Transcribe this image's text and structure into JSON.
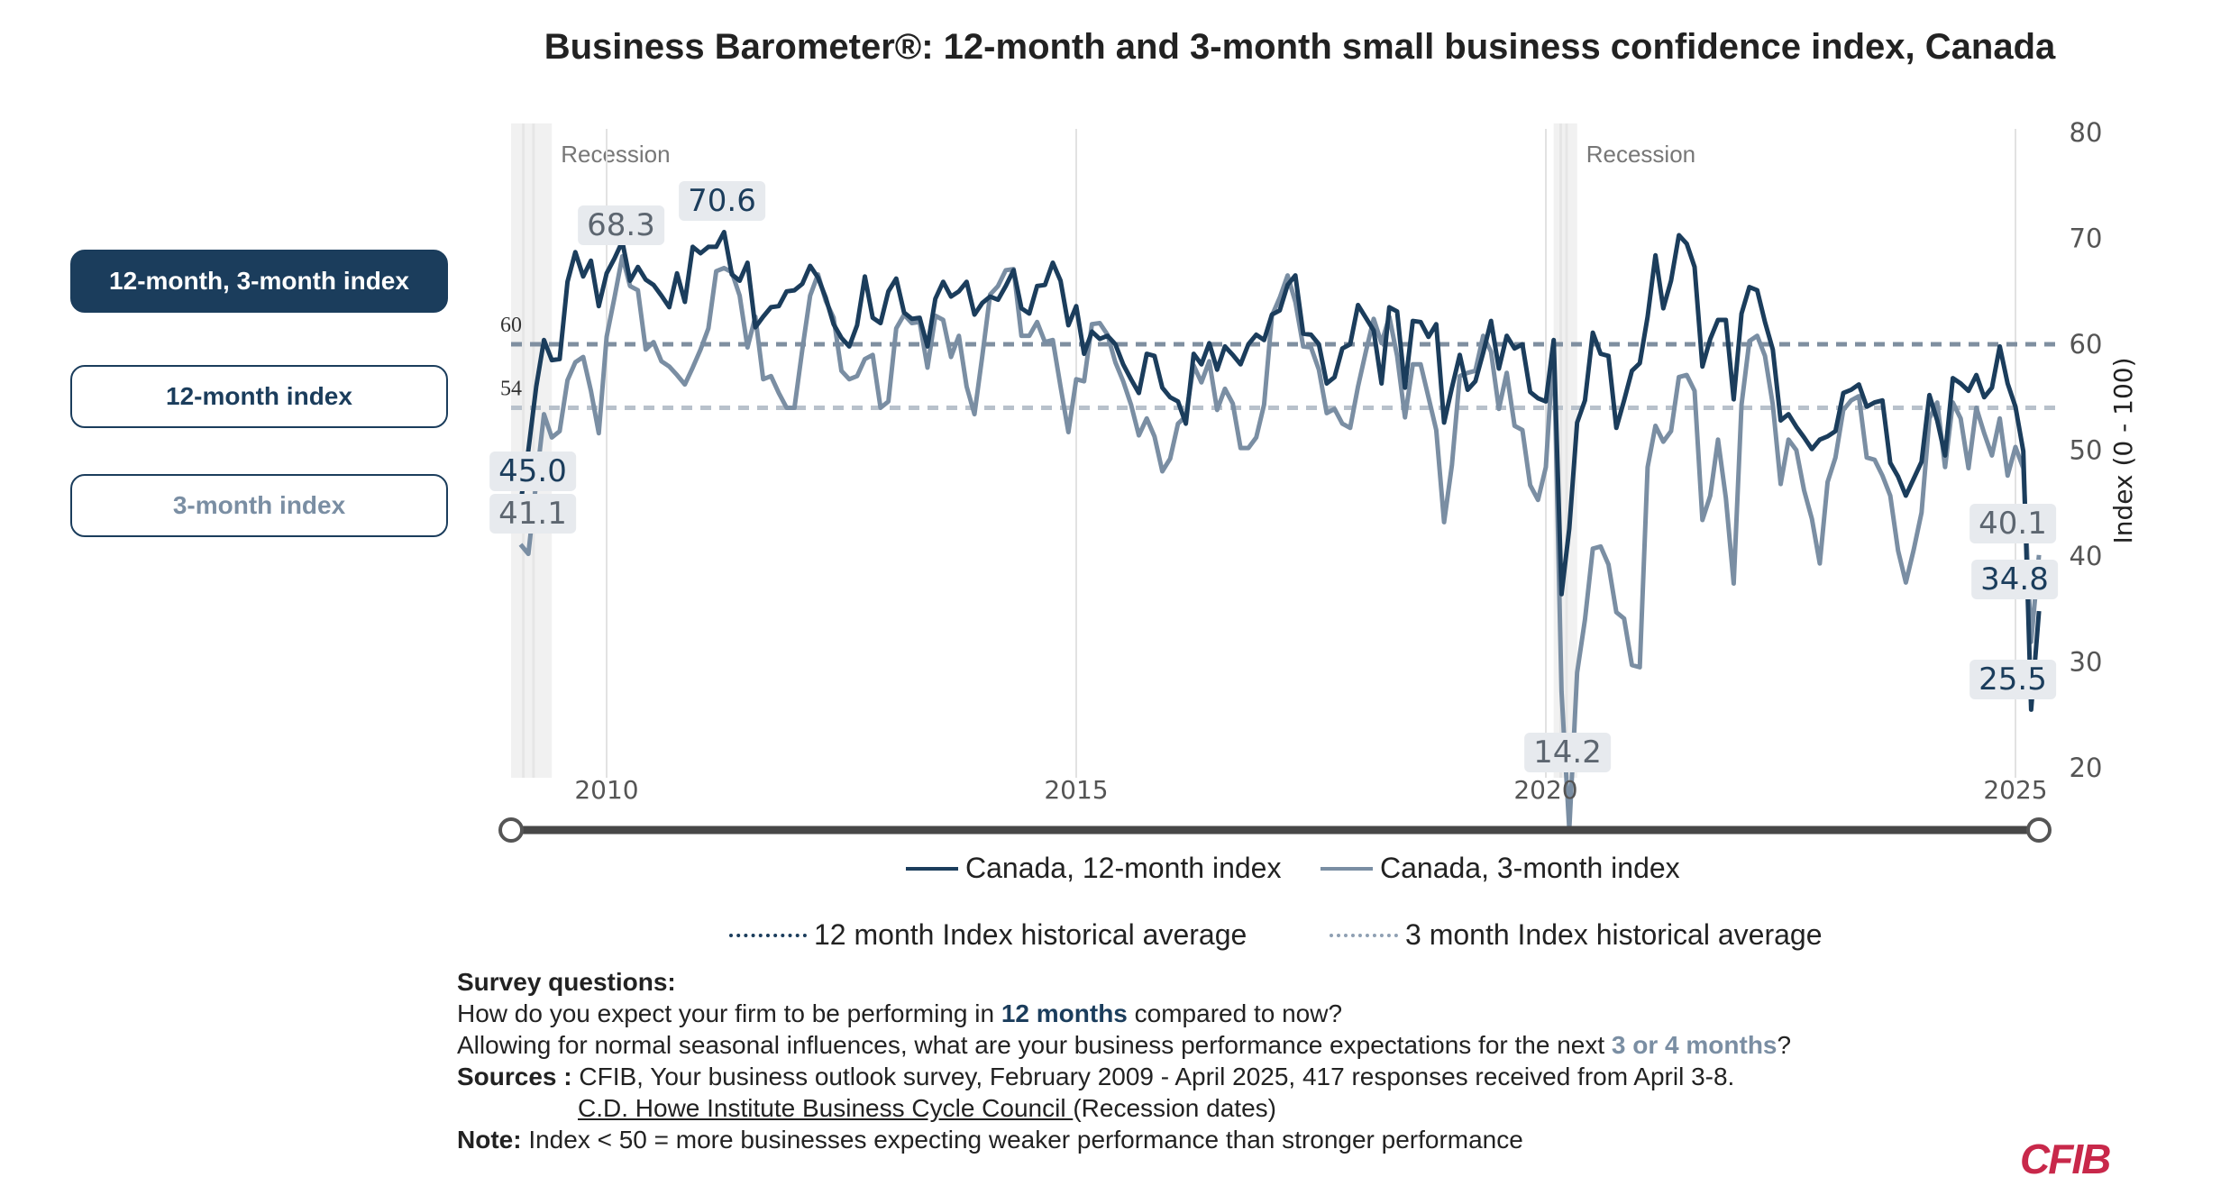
{
  "title": "Business Barometer®: 12-month and 3-month small business confidence index, Canada",
  "buttons": [
    {
      "label": "12-month, 3-month index",
      "active": true
    },
    {
      "label": "12-month index",
      "active": false
    },
    {
      "label": "3-month index",
      "active": false
    }
  ],
  "colors": {
    "series_12": "#1b3d5c",
    "series_3": "#7a8ea3",
    "avg_12": "#7f8fa0",
    "avg_3": "#b8c1cb",
    "recession": "#f1f1f1",
    "brand": "#c8284a"
  },
  "chart_data": {
    "type": "line",
    "title": "Business Barometer®: 12-month and 3-month small business confidence index, Canada",
    "start": "2009-02",
    "frequency": "monthly",
    "xticks": [
      "2010",
      "2015",
      "2020",
      "2025"
    ],
    "ylabel": "Index (0 - 100)",
    "ylim": [
      20,
      80
    ],
    "yticks": [
      "20",
      "30",
      "40",
      "50",
      "60",
      "70",
      "80"
    ],
    "y_axis_side": "right",
    "grid": "vertical at year ticks",
    "legend_placement": "bottom",
    "series": [
      {
        "name": "Canada, 12-month index",
        "values": [
          45.0,
          50,
          56,
          60.4,
          58.5,
          58.6,
          65.9,
          68.7,
          66.4,
          67.9,
          63.6,
          66.7,
          68.1,
          69.7,
          66.0,
          67.3,
          66.1,
          65.6,
          64.6,
          63.5,
          66.7,
          64.0,
          69.2,
          68.6,
          69.2,
          69.2,
          70.6,
          66.6,
          66.0,
          67.7,
          61.6,
          62.6,
          63.5,
          63.6,
          65.0,
          65.1,
          65.7,
          67.4,
          66.3,
          64.4,
          61.9,
          60.6,
          59.8,
          61.8,
          66.4,
          62.5,
          62.0,
          65.0,
          66.2,
          63.0,
          62.4,
          62.5,
          59.8,
          64.3,
          65.9,
          64.5,
          65.0,
          65.9,
          62.8,
          63.9,
          64.5,
          64.2,
          65.5,
          67.0,
          63.4,
          62.9,
          65.5,
          65.6,
          67.7,
          66.0,
          61.8,
          63.6,
          59.1,
          61.2,
          60.5,
          60.8,
          60.0,
          58.1,
          56.7,
          55.4,
          59.1,
          58.9,
          55.9,
          55.0,
          54.6,
          52.5,
          59.1,
          58.1,
          60.1,
          57.6,
          59.8,
          59.0,
          58.1,
          60.0,
          60.9,
          60.4,
          62.8,
          63.2,
          65.6,
          66.5,
          61.0,
          60.9,
          60.0,
          56.3,
          56.9,
          59.6,
          60.0,
          63.7,
          62.5,
          61.3,
          56.3,
          63.5,
          63.1,
          55.9,
          62.2,
          62.1,
          60.7,
          61.9,
          52.6,
          55.9,
          59.0,
          55.7,
          56.5,
          59.2,
          62.2,
          57.7,
          60.8,
          59.6,
          60.0,
          55.5,
          54.9,
          54.6,
          60.4,
          36.4,
          42.6,
          52.6,
          54.7,
          61.1,
          59.1,
          58.9,
          52.1,
          54.7,
          57.5,
          58.2,
          62.6,
          68.4,
          63.4,
          66.0,
          70.3,
          69.5,
          67.3,
          57.9,
          60.5,
          62.3,
          62.3,
          54.8,
          62.9,
          65.4,
          65.1,
          62.1,
          59.5,
          52.8,
          53.4,
          52.2,
          51.2,
          50.1,
          51.0,
          51.3,
          51.8,
          55.4,
          55.7,
          56.2,
          54.1,
          54.5,
          54.7,
          48.8,
          47.5,
          45.7,
          47.3,
          48.9,
          55.2,
          52.8,
          49.5,
          56.8,
          56.3,
          55.6,
          57.1,
          55.0,
          55.9,
          59.8,
          56.3,
          54.1,
          49.9,
          25.5,
          34.8
        ]
      },
      {
        "name": "Canada, 3-month index",
        "values": [
          41.1,
          40.2,
          47.0,
          53.4,
          51.2,
          51.8,
          56.6,
          58.3,
          58.8,
          55.6,
          51.6,
          60.7,
          64.4,
          68.3,
          65.5,
          65.1,
          59.5,
          60.2,
          58.4,
          57.9,
          57.1,
          56.2,
          57.8,
          59.5,
          61.5,
          66.9,
          67.2,
          66.8,
          64.6,
          59.7,
          62.6,
          56.7,
          57.0,
          55.4,
          54.0,
          54.0,
          59.5,
          64.6,
          66.6,
          64.1,
          62.5,
          57.5,
          56.7,
          57.0,
          58.6,
          59.0,
          54.0,
          54.6,
          61.5,
          62.8,
          62.0,
          62.1,
          57.8,
          62.7,
          62.3,
          58.8,
          60.8,
          56.0,
          53.4,
          58.9,
          64.7,
          65.5,
          67.0,
          67.1,
          60.8,
          60.8,
          62.1,
          60.2,
          60.4,
          56.0,
          51.7,
          56.7,
          56.5,
          61.9,
          62.0,
          60.9,
          58.3,
          56.5,
          54.3,
          51.4,
          53.0,
          51.3,
          48.0,
          49.2,
          52.5,
          53.2,
          58.0,
          56.4,
          58.4,
          53.8,
          55.8,
          54.4,
          50.2,
          50.2,
          51.2,
          54.3,
          62.7,
          64.4,
          66.5,
          64.0,
          59.8,
          59.7,
          57.6,
          53.5,
          53.9,
          52.5,
          52.1,
          56.0,
          59.3,
          62.4,
          60.1,
          62.6,
          58.9,
          53.1,
          58.1,
          58.1,
          55.0,
          51.9,
          43.2,
          48.6,
          57.0,
          57.3,
          57.5,
          60.8,
          59.3,
          53.9,
          57.3,
          52.3,
          51.9,
          46.7,
          45.3,
          48.4,
          60.2,
          27.2,
          14.2,
          29.0,
          34.0,
          40.7,
          40.9,
          39.2,
          34.7,
          34.1,
          29.7,
          29.5,
          48.4,
          52.3,
          50.8,
          51.8,
          56.9,
          57.1,
          55.6,
          43.4,
          45.7,
          51.0,
          45.5,
          37.4,
          54.3,
          60.3,
          60.8,
          58.9,
          54.3,
          46.8,
          51.0,
          50.0,
          46.2,
          43.5,
          39.3,
          47.0,
          49.3,
          53.8,
          54.7,
          55.1,
          49.3,
          49.1,
          47.6,
          45.7,
          40.5,
          37.5,
          40.6,
          44.1,
          53.0,
          54.5,
          48.4,
          54.5,
          53.0,
          48.3,
          54.0,
          51.6,
          49.5,
          53.0,
          47.6,
          50.3,
          48.3,
          31.9,
          40.1
        ]
      }
    ],
    "reference_lines": [
      {
        "name": "12 month Index historical average",
        "value": 60,
        "label": "60"
      },
      {
        "name": "3 month Index historical average",
        "value": 54,
        "label": "54"
      }
    ],
    "recessions": [
      {
        "label": "Recession",
        "start": "2008-10",
        "end": "2009-05"
      },
      {
        "label": "Recession",
        "start": "2020-02",
        "end": "2020-04"
      }
    ],
    "annotations": {
      "a683": "68.3",
      "a706": "70.6",
      "a450": "45.0",
      "a411": "41.1",
      "a142": "14.2",
      "a401": "40.1",
      "a348": "34.8",
      "a255": "25.5"
    }
  },
  "notes": {
    "survey_heading": "Survey questions:",
    "q12_pre": "How do you expect your firm to be performing in ",
    "q12_hl": "12 months",
    "q12_post": " compared to now?",
    "q3_pre": "Allowing for normal seasonal influences, what are your business performance expectations for the next ",
    "q3_hl": "3 or 4 months",
    "q3_post": "?",
    "sources_label": "Sources :",
    "sources_text": " CFIB, Your business outlook survey, February 2009 - April 2025, 417 responses received from April 3-8.",
    "cdhowe_link": "C.D. Howe Institute Business Cycle Council ",
    "cdhowe_post": "(Recession dates)",
    "note_label": "Note:",
    "note_text": " Index < 50 = more businesses expecting weaker performance than stronger performance"
  },
  "logo": "CFIB"
}
